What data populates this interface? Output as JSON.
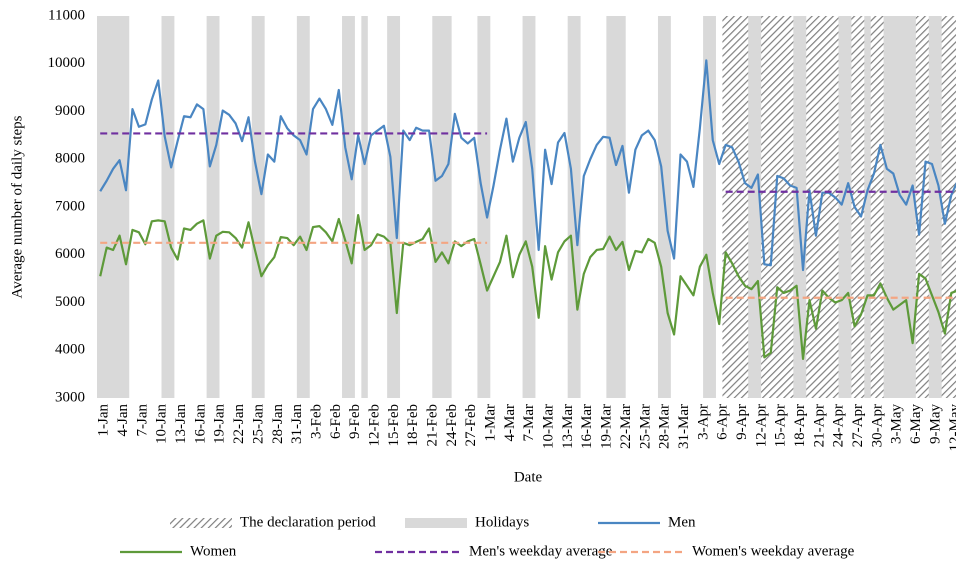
{
  "chart_data": {
    "type": "line",
    "x_label": "Date",
    "y_label": "Average number of daily steps",
    "ylim": [
      3000,
      11000
    ],
    "yticks": [
      3000,
      4000,
      5000,
      6000,
      7000,
      8000,
      9000,
      10000,
      11000
    ],
    "grid": false,
    "categories": [
      "1-Jan",
      null,
      null,
      "4-Jan",
      null,
      null,
      "7-Jan",
      null,
      null,
      "10-Jan",
      null,
      null,
      "13-Jan",
      null,
      null,
      "16-Jan",
      null,
      null,
      "19-Jan",
      null,
      null,
      "22-Jan",
      null,
      null,
      "25-Jan",
      null,
      null,
      "28-Jan",
      null,
      null,
      "31-Jan",
      null,
      null,
      "3-Feb",
      null,
      null,
      "6-Feb",
      null,
      null,
      "9-Feb",
      null,
      null,
      "12-Feb",
      null,
      null,
      "15-Feb",
      null,
      null,
      "18-Feb",
      null,
      null,
      "21-Feb",
      null,
      null,
      "24-Feb",
      null,
      null,
      "27-Feb",
      null,
      null,
      "1-Mar",
      null,
      null,
      "4-Mar",
      null,
      null,
      "7-Mar",
      null,
      null,
      "10-Mar",
      null,
      null,
      "13-Mar",
      null,
      null,
      "16-Mar",
      null,
      null,
      "19-Mar",
      null,
      null,
      "22-Mar",
      null,
      null,
      "25-Mar",
      null,
      null,
      "28-Mar",
      null,
      null,
      "31-Mar",
      null,
      null,
      "3-Apr",
      null,
      null,
      "6-Apr",
      null,
      null,
      "9-Apr",
      null,
      null,
      "12-Apr",
      null,
      null,
      "15-Apr",
      null,
      null,
      "18-Apr",
      null,
      null,
      "21-Apr",
      null,
      null,
      "24-Apr",
      null,
      null,
      "27-Apr",
      null,
      null,
      "30-Apr",
      null,
      null,
      "3-May",
      null,
      null,
      "6-May",
      null,
      null,
      "9-May",
      null,
      null,
      "12-May",
      null
    ],
    "shaded": [
      {
        "name": "The declaration period",
        "style": "hatch",
        "color": "#7f7f7f",
        "ranges": [
          [
            97,
            133
          ]
        ]
      },
      {
        "name": "Holidays",
        "style": "solid",
        "color": "#d9d9d9",
        "ranges": [
          [
            0,
            4
          ],
          [
            10,
            11
          ],
          [
            17,
            18
          ],
          [
            24,
            25
          ],
          [
            31,
            32
          ],
          [
            38,
            39
          ],
          [
            41,
            41
          ],
          [
            45,
            46
          ],
          [
            52,
            54
          ],
          [
            59,
            60
          ],
          [
            66,
            67
          ],
          [
            73,
            74
          ],
          [
            79,
            81
          ],
          [
            87,
            88
          ],
          [
            94,
            95
          ],
          [
            101,
            102
          ],
          [
            108,
            109
          ],
          [
            115,
            116
          ],
          [
            119,
            119
          ],
          [
            122,
            126
          ],
          [
            129,
            130
          ]
        ]
      }
    ],
    "series": [
      {
        "name": "Men",
        "color": "#4a86c2",
        "dash": false,
        "values": [
          7330,
          7550,
          7800,
          7980,
          7350,
          9050,
          8680,
          8730,
          9250,
          9650,
          8480,
          7830,
          8380,
          8900,
          8880,
          9150,
          9050,
          7850,
          8300,
          9020,
          8930,
          8750,
          8380,
          8880,
          7950,
          7270,
          8100,
          7950,
          8900,
          8650,
          8500,
          8400,
          8100,
          9050,
          9270,
          9050,
          8720,
          9450,
          8250,
          7580,
          8500,
          7900,
          8500,
          8600,
          8700,
          8050,
          6350,
          8600,
          8400,
          8660,
          8600,
          8600,
          7550,
          7650,
          7900,
          8950,
          8450,
          8330,
          8450,
          7500,
          6780,
          7450,
          8200,
          8850,
          7950,
          8450,
          8780,
          7800,
          6100,
          8200,
          7480,
          8350,
          8550,
          7800,
          6200,
          7650,
          8000,
          8300,
          8470,
          8450,
          7880,
          8280,
          7300,
          8200,
          8500,
          8600,
          8400,
          7850,
          6500,
          5920,
          8100,
          7950,
          7420,
          8650,
          10070,
          8400,
          7900,
          8300,
          8250,
          7950,
          7500,
          7400,
          7680,
          5800,
          5780,
          7650,
          7600,
          7450,
          7400,
          5680,
          7350,
          6400,
          7300,
          7300,
          7200,
          7050,
          7500,
          7000,
          6800,
          7350,
          7700,
          8300,
          7800,
          7700,
          7250,
          7050,
          7450,
          6420,
          7950,
          7900,
          7450,
          6650,
          7250,
          7550
        ]
      },
      {
        "name": "Women",
        "color": "#5e9a3a",
        "dash": false,
        "values": [
          5550,
          6150,
          6100,
          6400,
          5800,
          6520,
          6470,
          6220,
          6700,
          6720,
          6700,
          6150,
          5900,
          6550,
          6520,
          6650,
          6720,
          5920,
          6400,
          6480,
          6470,
          6350,
          6150,
          6680,
          6100,
          5550,
          5780,
          5950,
          6370,
          6350,
          6200,
          6380,
          6100,
          6580,
          6600,
          6470,
          6280,
          6750,
          6300,
          5820,
          6830,
          6100,
          6200,
          6430,
          6380,
          6250,
          4780,
          6250,
          6200,
          6270,
          6330,
          6550,
          5850,
          6050,
          5820,
          6280,
          6180,
          6280,
          6330,
          5800,
          5250,
          5550,
          5850,
          6400,
          5530,
          6000,
          6280,
          5750,
          4680,
          6180,
          5480,
          6050,
          6280,
          6400,
          4850,
          5600,
          5950,
          6100,
          6120,
          6380,
          6100,
          6270,
          5680,
          6080,
          6050,
          6330,
          6250,
          5750,
          4780,
          4330,
          5550,
          5350,
          5150,
          5750,
          6000,
          5200,
          4550,
          6050,
          5820,
          5550,
          5350,
          5280,
          5450,
          3850,
          3950,
          5320,
          5200,
          5250,
          5350,
          3820,
          5050,
          4450,
          5250,
          5100,
          5000,
          5050,
          5200,
          4500,
          4750,
          5150,
          5150,
          5400,
          5100,
          4850,
          4950,
          5050,
          4150,
          5600,
          5500,
          5150,
          4800,
          4350,
          5200,
          5250
        ]
      },
      {
        "name": "Men's weekday average",
        "color": "#7030a0",
        "dash": true,
        "values": [
          8540,
          8540,
          8540,
          8540,
          8540,
          8540,
          8540,
          8540,
          8540,
          8540,
          8540,
          8540,
          8540,
          8540,
          8540,
          8540,
          8540,
          8540,
          8540,
          8540,
          8540,
          8540,
          8540,
          8540,
          8540,
          8540,
          8540,
          8540,
          8540,
          8540,
          8540,
          8540,
          8540,
          8540,
          8540,
          8540,
          8540,
          8540,
          8540,
          8540,
          8540,
          8540,
          8540,
          8540,
          8540,
          8540,
          8540,
          8540,
          8540,
          8540,
          8540,
          8540,
          8540,
          8540,
          8540,
          8540,
          8540,
          8540,
          8540,
          8540,
          8540,
          null,
          null,
          null,
          null,
          null,
          null,
          null,
          null,
          null,
          null,
          null,
          null,
          null,
          null,
          null,
          null,
          null,
          null,
          null,
          null,
          null,
          null,
          null,
          null,
          null,
          null,
          null,
          null,
          null,
          null,
          null,
          null,
          null,
          null,
          null,
          null,
          7320,
          7320,
          7320,
          7320,
          7320,
          7320,
          7320,
          7320,
          7320,
          7320,
          7320,
          7320,
          7320,
          7320,
          7320,
          7320,
          7320,
          7320,
          7320,
          7320,
          7320,
          7320,
          7320,
          7320,
          7320,
          7320,
          7320,
          7320,
          7320,
          7320,
          7320,
          7320,
          7320,
          7320,
          7320,
          7320,
          7320
        ]
      },
      {
        "name": "Women's weekday average",
        "color": "#f4a582",
        "dash": true,
        "values": [
          6250,
          6250,
          6250,
          6250,
          6250,
          6250,
          6250,
          6250,
          6250,
          6250,
          6250,
          6250,
          6250,
          6250,
          6250,
          6250,
          6250,
          6250,
          6250,
          6250,
          6250,
          6250,
          6250,
          6250,
          6250,
          6250,
          6250,
          6250,
          6250,
          6250,
          6250,
          6250,
          6250,
          6250,
          6250,
          6250,
          6250,
          6250,
          6250,
          6250,
          6250,
          6250,
          6250,
          6250,
          6250,
          6250,
          6250,
          6250,
          6250,
          6250,
          6250,
          6250,
          6250,
          6250,
          6250,
          6250,
          6250,
          6250,
          6250,
          6250,
          6250,
          null,
          null,
          null,
          null,
          null,
          null,
          null,
          null,
          null,
          null,
          null,
          null,
          null,
          null,
          null,
          null,
          null,
          null,
          null,
          null,
          null,
          null,
          null,
          null,
          null,
          null,
          null,
          null,
          null,
          null,
          null,
          null,
          null,
          null,
          null,
          null,
          5100,
          5100,
          5100,
          5100,
          5100,
          5100,
          5100,
          5100,
          5100,
          5100,
          5100,
          5100,
          5100,
          5100,
          5100,
          5100,
          5100,
          5100,
          5100,
          5100,
          5100,
          5100,
          5100,
          5100,
          5100,
          5100,
          5100,
          5100,
          5100,
          5100,
          5100,
          5100,
          5100,
          5100,
          5100,
          5100,
          5100
        ]
      }
    ]
  }
}
